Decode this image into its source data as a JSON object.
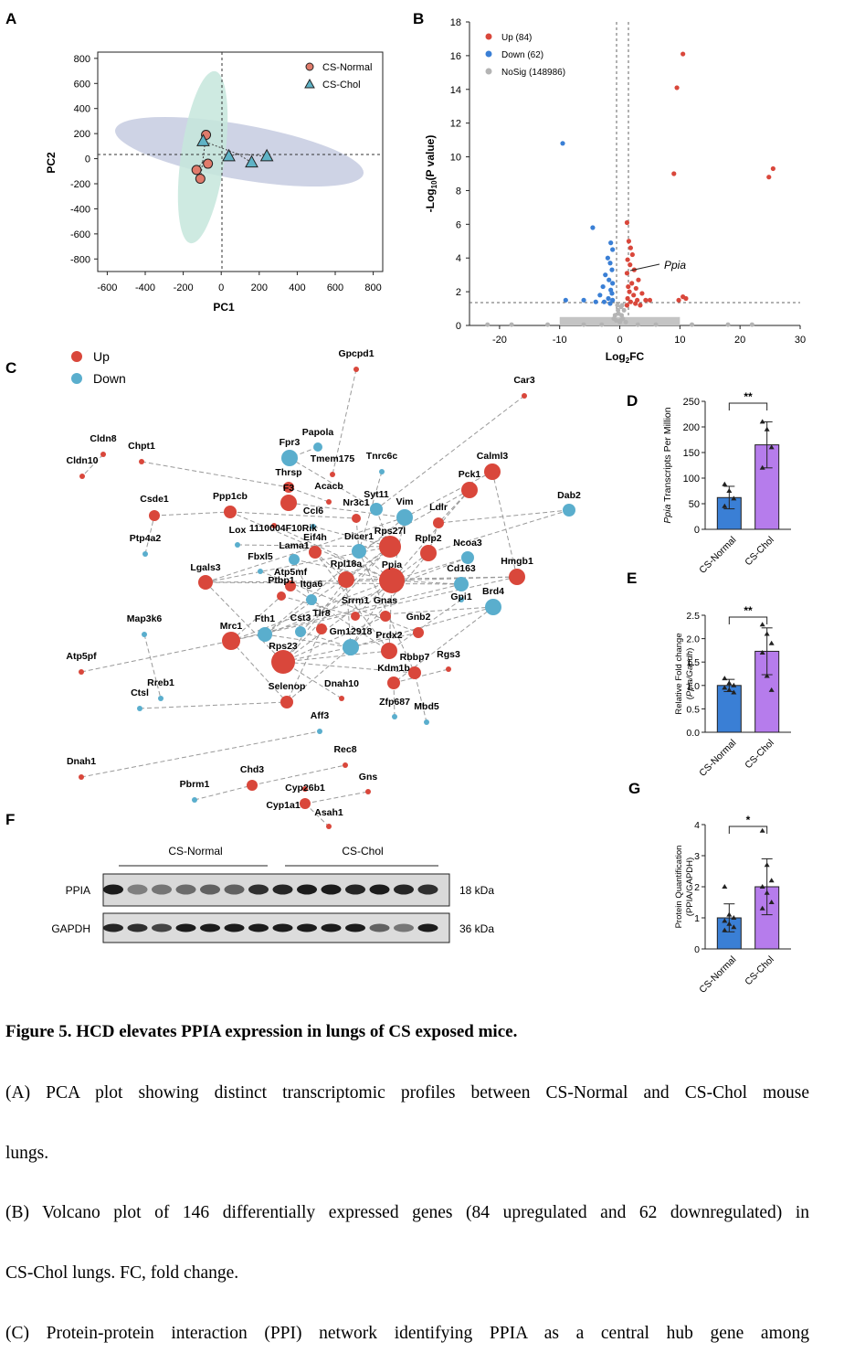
{
  "panel_labels": {
    "A": "A",
    "B": "B",
    "C": "C",
    "D": "D",
    "E": "E",
    "F": "F",
    "G": "G"
  },
  "colors": {
    "up": "#d9473b",
    "down": "#5aaecd",
    "nosig": "#b4b4b4",
    "normal": "#3a7fd5",
    "chol": "#b67cec",
    "ellipse_normal": "#c5e6dc",
    "ellipse_chol": "#c6cbe0"
  },
  "chart_data": [
    {
      "id": "A",
      "type": "scatter",
      "xlabel": "PC1",
      "ylabel": "PC2",
      "xlim": [
        -650,
        850
      ],
      "ylim": [
        -900,
        850
      ],
      "xticks": [
        -600,
        -400,
        -200,
        0,
        200,
        400,
        600,
        800
      ],
      "yticks": [
        800,
        600,
        400,
        200,
        0,
        -200,
        -400,
        -600,
        -800
      ],
      "legend_position": "top-right",
      "series": [
        {
          "name": "CS-Normal",
          "marker": "circle",
          "points": [
            [
              -80,
              190
            ],
            [
              -70,
              -40
            ],
            [
              -130,
              -90
            ],
            [
              -110,
              -160
            ]
          ]
        },
        {
          "name": "CS-Chol",
          "marker": "triangle",
          "points": [
            [
              -95,
              140
            ],
            [
              40,
              20
            ],
            [
              160,
              -30
            ],
            [
              240,
              20
            ]
          ]
        }
      ]
    },
    {
      "id": "B",
      "type": "scatter",
      "xlabel": "Log2FC",
      "ylabel": "-Log10(P value)",
      "xlim": [
        -25,
        30
      ],
      "ylim": [
        0,
        18
      ],
      "xticks": [
        -20,
        -10,
        0,
        10,
        20,
        30
      ],
      "yticks": [
        0,
        2,
        4,
        6,
        8,
        10,
        12,
        14,
        16,
        18
      ],
      "legend": [
        "Up (84)",
        "Down (62)",
        "NoSig (148986)"
      ],
      "annotation": "Ppia",
      "up_points": [
        [
          10.5,
          16.1
        ],
        [
          9.5,
          14.1
        ],
        [
          9,
          9
        ],
        [
          25.5,
          9.3
        ],
        [
          24.8,
          8.8
        ],
        [
          1.2,
          6.1
        ],
        [
          1.5,
          5.0
        ],
        [
          1.8,
          4.6
        ],
        [
          2.1,
          4.2
        ],
        [
          1.3,
          3.9
        ],
        [
          1.7,
          3.6
        ],
        [
          2.4,
          3.3
        ],
        [
          1.2,
          3.1
        ],
        [
          3.1,
          2.7
        ],
        [
          2.0,
          2.5
        ],
        [
          1.4,
          2.3
        ],
        [
          2.7,
          2.2
        ],
        [
          1.6,
          2.0
        ],
        [
          3.7,
          1.9
        ],
        [
          2.3,
          1.8
        ],
        [
          1.3,
          1.6
        ],
        [
          2.9,
          1.5
        ],
        [
          4.3,
          1.5
        ],
        [
          1.8,
          1.4
        ],
        [
          2.6,
          1.3
        ],
        [
          1.2,
          1.2
        ],
        [
          3.4,
          1.2
        ],
        [
          10.5,
          1.7
        ],
        [
          9.8,
          1.5
        ],
        [
          11.0,
          1.6
        ],
        [
          5.0,
          1.5
        ]
      ],
      "down_points": [
        [
          -9.5,
          10.8
        ],
        [
          -4.5,
          5.8
        ],
        [
          -1.5,
          4.9
        ],
        [
          -1.2,
          4.5
        ],
        [
          -2.0,
          4.0
        ],
        [
          -1.6,
          3.7
        ],
        [
          -1.3,
          3.3
        ],
        [
          -2.4,
          3.0
        ],
        [
          -1.8,
          2.7
        ],
        [
          -1.2,
          2.5
        ],
        [
          -2.8,
          2.3
        ],
        [
          -1.5,
          2.1
        ],
        [
          -1.3,
          1.9
        ],
        [
          -3.3,
          1.8
        ],
        [
          -1.9,
          1.6
        ],
        [
          -1.2,
          1.5
        ],
        [
          -2.6,
          1.4
        ],
        [
          -6.0,
          1.5
        ],
        [
          -9.0,
          1.5
        ],
        [
          -4.0,
          1.4
        ],
        [
          -1.6,
          1.3
        ]
      ],
      "nosig_points": [
        [
          0,
          0.2
        ],
        [
          0.3,
          0.6
        ],
        [
          -0.3,
          0.9
        ],
        [
          0.5,
          0.4
        ],
        [
          -0.6,
          0.3
        ],
        [
          0.2,
          1.1
        ],
        [
          -0.2,
          0.7
        ],
        [
          0.7,
          0.9
        ],
        [
          -0.8,
          0.6
        ],
        [
          1.0,
          0.2
        ],
        [
          -1.0,
          0.4
        ],
        [
          0.1,
          0.3
        ],
        [
          -22,
          0.05
        ],
        [
          -18,
          0.05
        ],
        [
          -12,
          0.05
        ],
        [
          -6,
          0.05
        ],
        [
          6,
          0.05
        ],
        [
          12,
          0.05
        ],
        [
          18,
          0.05
        ],
        [
          22,
          0.05
        ],
        [
          3,
          0.05
        ],
        [
          -3,
          0.05
        ],
        [
          0.4,
          1.2
        ],
        [
          -0.4,
          1.2
        ]
      ]
    },
    {
      "id": "D",
      "type": "bar",
      "ylabel": "Ppia Transcripts Per Million",
      "categories": [
        "CS-Normal",
        "CS-Chol"
      ],
      "values": [
        62,
        165
      ],
      "errors": [
        22,
        45
      ],
      "ylim": [
        0,
        250
      ],
      "yticks": [
        0,
        50,
        100,
        150,
        200,
        250
      ],
      "points": [
        [
          88,
          75,
          60,
          45
        ],
        [
          210,
          195,
          160,
          120
        ]
      ],
      "significance": "**"
    },
    {
      "id": "E",
      "type": "bar",
      "ylabel": "Relative Fold change (Ppia/Gapdh)",
      "categories": [
        "CS-Normal",
        "CS-Chol"
      ],
      "values": [
        1.0,
        1.73
      ],
      "errors": [
        0.13,
        0.5
      ],
      "ylim": [
        0,
        2.5
      ],
      "yticks": [
        0.0,
        0.5,
        1.0,
        1.5,
        2.0,
        2.5
      ],
      "points": [
        [
          1.15,
          1.05,
          1.0,
          0.95,
          0.9,
          0.85
        ],
        [
          2.3,
          2.1,
          1.9,
          1.7,
          1.2,
          0.9
        ]
      ],
      "significance": "**"
    },
    {
      "id": "G",
      "type": "bar",
      "ylabel": "Protein Quantification (PPIA/GAPDH)",
      "categories": [
        "CS-Normal",
        "CS-Chol"
      ],
      "values": [
        1.0,
        2.0
      ],
      "errors": [
        0.45,
        0.9
      ],
      "ylim": [
        0,
        4
      ],
      "yticks": [
        0,
        1,
        2,
        3,
        4
      ],
      "points": [
        [
          2.0,
          1.1,
          1.0,
          0.9,
          0.8,
          0.7,
          0.6
        ],
        [
          3.8,
          2.7,
          2.2,
          2.0,
          1.8,
          1.5,
          1.3
        ]
      ],
      "significance": "*"
    }
  ],
  "network": {
    "legend": [
      "Up",
      "Down"
    ],
    "nodes": [
      {
        "name": "Gpcpd1",
        "t": "u"
      },
      {
        "name": "Car3",
        "t": "u"
      },
      {
        "name": "Cldn8",
        "t": "u"
      },
      {
        "name": "Chpt1",
        "t": "u"
      },
      {
        "name": "Cldn10",
        "t": "u"
      },
      {
        "name": "Csde1",
        "t": "u"
      },
      {
        "name": "Ptp4a2",
        "t": "d"
      },
      {
        "name": "Map3k6",
        "t": "d"
      },
      {
        "name": "Atp5pf",
        "t": "u"
      },
      {
        "name": "Rreb1",
        "t": "d"
      },
      {
        "name": "Ctsl",
        "t": "d"
      },
      {
        "name": "Dnah1",
        "t": "u"
      },
      {
        "name": "Pbrm1",
        "t": "d"
      },
      {
        "name": "Chd3",
        "t": "u"
      },
      {
        "name": "Cyp26b1",
        "t": "u"
      },
      {
        "name": "Cyp1a1",
        "t": "u"
      },
      {
        "name": "Asah1",
        "t": "u"
      },
      {
        "name": "Gns",
        "t": "u"
      },
      {
        "name": "Rec8",
        "t": "u"
      },
      {
        "name": "Aff3",
        "t": "d"
      },
      {
        "name": "Dnah10",
        "t": "u"
      },
      {
        "name": "Zfp687",
        "t": "d"
      },
      {
        "name": "Mbd5",
        "t": "d"
      },
      {
        "name": "Papola",
        "t": "d"
      },
      {
        "name": "Fpr3",
        "t": "d"
      },
      {
        "name": "Tmem175",
        "t": "u"
      },
      {
        "name": "Tnrc6c",
        "t": "d"
      },
      {
        "name": "Calml3",
        "t": "u"
      },
      {
        "name": "Thrsp",
        "t": "u"
      },
      {
        "name": "Pck1",
        "t": "u"
      },
      {
        "name": "Dab2",
        "t": "d"
      },
      {
        "name": "Acacb",
        "t": "u"
      },
      {
        "name": "F3",
        "t": "u"
      },
      {
        "name": "Syt11",
        "t": "d"
      },
      {
        "name": "Ppp1cb",
        "t": "u"
      },
      {
        "name": "Nr3c1",
        "t": "u"
      },
      {
        "name": "Vim",
        "t": "d"
      },
      {
        "name": "Ldlr",
        "t": "u"
      },
      {
        "name": "Ccl6",
        "t": "d"
      },
      {
        "name": "1110004F10Rik",
        "t": "u"
      },
      {
        "name": "Lox",
        "t": "d"
      },
      {
        "name": "Eif4h",
        "t": "u"
      },
      {
        "name": "Dicer1",
        "t": "d"
      },
      {
        "name": "Rps27l",
        "t": "u"
      },
      {
        "name": "Rplp2",
        "t": "u"
      },
      {
        "name": "Ncoa3",
        "t": "d"
      },
      {
        "name": "Lama1",
        "t": "d"
      },
      {
        "name": "Fbxl5",
        "t": "d"
      },
      {
        "name": "Hmgb1",
        "t": "u"
      },
      {
        "name": "Rpl18a",
        "t": "u"
      },
      {
        "name": "Ppia",
        "t": "u"
      },
      {
        "name": "Cd163",
        "t": "d"
      },
      {
        "name": "Atp5mf",
        "t": "u"
      },
      {
        "name": "Lgals3",
        "t": "u"
      },
      {
        "name": "Ptbp1",
        "t": "u"
      },
      {
        "name": "Itga6",
        "t": "d"
      },
      {
        "name": "Brd4",
        "t": "d"
      },
      {
        "name": "Gpi1",
        "t": "d"
      },
      {
        "name": "Srrm1",
        "t": "u"
      },
      {
        "name": "Gnas",
        "t": "u"
      },
      {
        "name": "Tlr8",
        "t": "u"
      },
      {
        "name": "Cst3",
        "t": "d"
      },
      {
        "name": "Gnb2",
        "t": "u"
      },
      {
        "name": "Mrc1",
        "t": "u"
      },
      {
        "name": "Fth1",
        "t": "d"
      },
      {
        "name": "Gm12918",
        "t": "d"
      },
      {
        "name": "Prdx2",
        "t": "u"
      },
      {
        "name": "Rps23",
        "t": "u"
      },
      {
        "name": "Rbbp7",
        "t": "u"
      },
      {
        "name": "Rgs3",
        "t": "u"
      },
      {
        "name": "Kdm1b",
        "t": "u"
      },
      {
        "name": "Selenop",
        "t": "u"
      }
    ]
  },
  "blot": {
    "group_normal": "CS-Normal",
    "group_chol": "CS-Chol",
    "row1_label": "PPIA",
    "row1_size": "18 kDa",
    "row2_label": "GAPDH",
    "row2_size": "36 kDa"
  },
  "caption": {
    "title": "Figure 5. HCD elevates PPIA expression in lungs of CS exposed mice.",
    "a_line1": "(A) PCA plot showing distinct transcriptomic profiles between CS-Normal and CS-Chol mouse",
    "a_line2": "lungs.",
    "b_line1": "(B) Volcano plot of 146 differentially expressed genes (84 upregulated and 62 downregulated) in",
    "b_line2": "CS-Chol lungs. FC, fold change.",
    "c_line1": "(C) Protein-protein interaction (PPI) network identifying PPIA as a central hub gene among"
  }
}
